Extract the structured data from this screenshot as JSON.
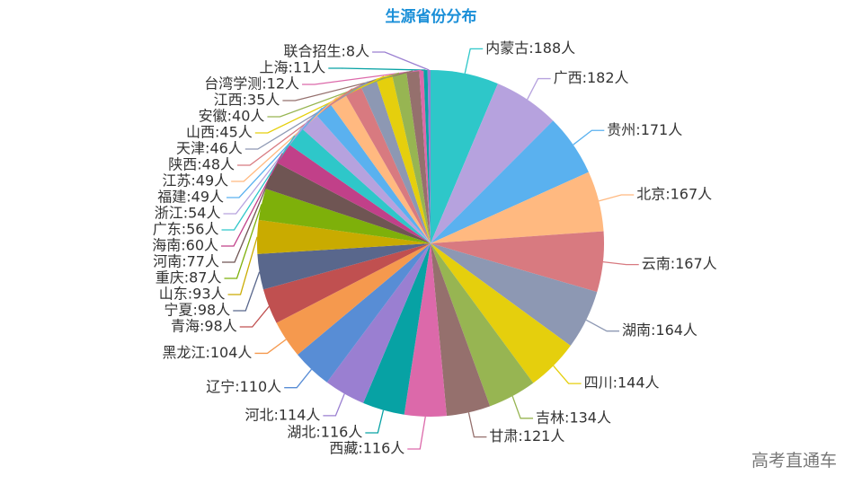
{
  "chart_data": {
    "type": "pie",
    "title": "生源省份分布",
    "unit": "人",
    "slices": [
      {
        "name": "内蒙古",
        "value": 188,
        "color": "#2ec7c9"
      },
      {
        "name": "广西",
        "value": 182,
        "color": "#b6a2de"
      },
      {
        "name": "贵州",
        "value": 171,
        "color": "#5ab1ef"
      },
      {
        "name": "北京",
        "value": 167,
        "color": "#ffb980"
      },
      {
        "name": "云南",
        "value": 167,
        "color": "#d87a80"
      },
      {
        "name": "湖南",
        "value": 164,
        "color": "#8d98b3"
      },
      {
        "name": "四川",
        "value": 144,
        "color": "#e5cf0d"
      },
      {
        "name": "吉林",
        "value": 134,
        "color": "#97b552"
      },
      {
        "name": "甘肃",
        "value": 121,
        "color": "#95706d"
      },
      {
        "name": "西藏",
        "value": 116,
        "color": "#dc69aa"
      },
      {
        "name": "湖北",
        "value": 116,
        "color": "#07a2a4"
      },
      {
        "name": "河北",
        "value": 114,
        "color": "#9a7fd1"
      },
      {
        "name": "辽宁",
        "value": 110,
        "color": "#588dd5"
      },
      {
        "name": "黑龙江",
        "value": 104,
        "color": "#f5994e"
      },
      {
        "name": "青海",
        "value": 98,
        "color": "#c05050"
      },
      {
        "name": "宁夏",
        "value": 98,
        "color": "#59678c"
      },
      {
        "name": "山东",
        "value": 93,
        "color": "#c9ab00"
      },
      {
        "name": "重庆",
        "value": 87,
        "color": "#7eb00a"
      },
      {
        "name": "河南",
        "value": 77,
        "color": "#6f5553"
      },
      {
        "name": "海南",
        "value": 60,
        "color": "#c14089"
      },
      {
        "name": "广东",
        "value": 56,
        "color": "#2ec7c9"
      },
      {
        "name": "浙江",
        "value": 54,
        "color": "#b6a2de"
      },
      {
        "name": "福建",
        "value": 49,
        "color": "#5ab1ef"
      },
      {
        "name": "江苏",
        "value": 49,
        "color": "#ffb980"
      },
      {
        "name": "陕西",
        "value": 48,
        "color": "#d87a80"
      },
      {
        "name": "天津",
        "value": 46,
        "color": "#8d98b3"
      },
      {
        "name": "山西",
        "value": 45,
        "color": "#e5cf0d"
      },
      {
        "name": "安徽",
        "value": 40,
        "color": "#97b552"
      },
      {
        "name": "江西",
        "value": 35,
        "color": "#95706d"
      },
      {
        "name": "台湾学测",
        "value": 12,
        "color": "#dc69aa"
      },
      {
        "name": "上海",
        "value": 11,
        "color": "#07a2a4"
      },
      {
        "name": "联合招生",
        "value": 8,
        "color": "#9a7fd1"
      }
    ]
  },
  "watermark": "高考直通车"
}
